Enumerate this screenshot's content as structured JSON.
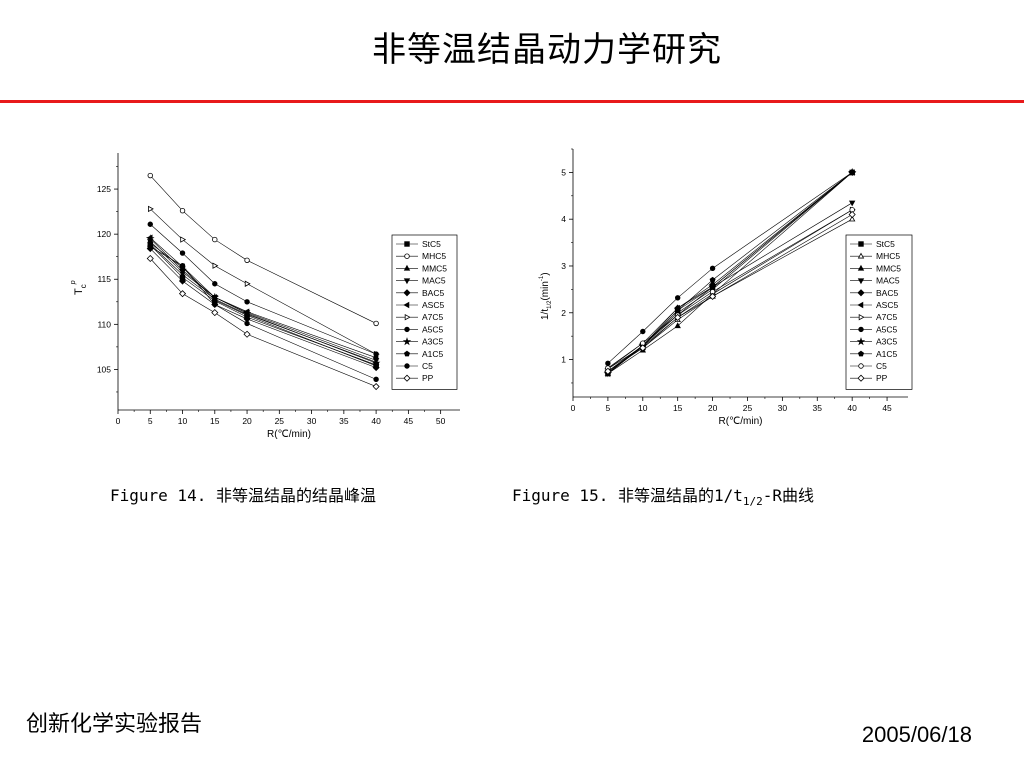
{
  "slide": {
    "title": "非等温结晶动力学研究",
    "rule_color": "#e8191b",
    "footer_left": "创新化学实验报告",
    "footer_right": "2005/06/18"
  },
  "captions": {
    "fig14": "Figure 14. 非等温结晶的结晶峰温",
    "fig15_prefix": "Figure 15. 非等温结晶的1/t",
    "fig15_sub": "1/2",
    "fig15_suffix": "-R曲线"
  },
  "chart_data": [
    {
      "type": "line",
      "ylabel_main": "T",
      "ylabel_sub": "c",
      "ylabel_sup": "p",
      "xlabel": "R(℃/min)",
      "x": [
        5,
        10,
        15,
        20,
        40
      ],
      "xlim": [
        0,
        53
      ],
      "ylim": [
        100.5,
        129
      ],
      "xticks": [
        0,
        5,
        10,
        15,
        20,
        25,
        30,
        35,
        40,
        45,
        50
      ],
      "yticks": [
        105,
        110,
        115,
        120,
        125
      ],
      "legend_position": "right",
      "series": [
        {
          "name": "StC5",
          "marker": "square",
          "values": [
            118.8,
            115.2,
            112.6,
            110.8,
            105.5
          ]
        },
        {
          "name": "MHC5",
          "marker": "circle-open",
          "values": [
            126.5,
            122.6,
            119.4,
            117.1,
            110.1
          ]
        },
        {
          "name": "MMC5",
          "marker": "triangle-up",
          "values": [
            118.9,
            115.5,
            112.8,
            111.1,
            105.8
          ]
        },
        {
          "name": "MAC5",
          "marker": "triangle-down",
          "values": [
            119.2,
            115.8,
            113.0,
            111.3,
            106.0
          ]
        },
        {
          "name": "BAC5",
          "marker": "diamond",
          "values": [
            118.4,
            114.8,
            112.2,
            110.6,
            105.2
          ]
        },
        {
          "name": "ASC5",
          "marker": "triangle-left",
          "values": [
            119.6,
            116.4,
            113.0,
            111.4,
            106.3
          ]
        },
        {
          "name": "A7C5",
          "marker": "triangle-right-open",
          "values": [
            122.8,
            119.4,
            116.5,
            114.5,
            106.7
          ]
        },
        {
          "name": "A5C5",
          "marker": "circle",
          "values": [
            118.6,
            116.5,
            112.2,
            110.1,
            103.9
          ]
        },
        {
          "name": "A3C5",
          "marker": "star",
          "values": [
            119.5,
            116.0,
            113.0,
            111.2,
            105.7
          ]
        },
        {
          "name": "A1C5",
          "marker": "pentagon",
          "values": [
            119.0,
            116.3,
            112.7,
            111.0,
            105.4
          ]
        },
        {
          "name": "C5",
          "marker": "circle",
          "values": [
            121.1,
            117.9,
            114.5,
            112.5,
            106.7
          ]
        },
        {
          "name": "PP",
          "marker": "diamond-open",
          "values": [
            117.3,
            113.4,
            111.3,
            108.9,
            103.1
          ]
        }
      ]
    },
    {
      "type": "line",
      "ylabel_main": "1/t",
      "ylabel_sub": "1/2",
      "ylabel_tail": "(min",
      "ylabel_sup": "-1",
      "ylabel_close": ")",
      "xlabel": "R(℃/min)",
      "x": [
        5,
        10,
        15,
        20,
        40
      ],
      "xlim": [
        0,
        48
      ],
      "ylim": [
        0.2,
        5.5
      ],
      "xticks": [
        0,
        5,
        10,
        15,
        20,
        25,
        30,
        35,
        40,
        45
      ],
      "yticks": [
        1,
        2,
        3,
        4,
        5
      ],
      "legend_position": "right",
      "series": [
        {
          "name": "StC5",
          "marker": "square",
          "values": [
            0.72,
            1.3,
            2.0,
            2.5,
            5.0
          ]
        },
        {
          "name": "MHC5",
          "marker": "triangle-up-open",
          "values": [
            0.75,
            1.25,
            1.85,
            2.35,
            4.0
          ]
        },
        {
          "name": "MMC5",
          "marker": "triangle-up",
          "values": [
            0.7,
            1.2,
            1.72,
            2.4,
            5.0
          ]
        },
        {
          "name": "MAC5",
          "marker": "triangle-down",
          "values": [
            0.7,
            1.28,
            2.05,
            2.55,
            4.35
          ]
        },
        {
          "name": "BAC5",
          "marker": "diamond",
          "values": [
            0.75,
            1.3,
            2.1,
            2.6,
            5.0
          ]
        },
        {
          "name": "ASC5",
          "marker": "triangle-left",
          "values": [
            0.8,
            1.35,
            2.1,
            2.55,
            5.0
          ]
        },
        {
          "name": "A7C5",
          "marker": "triangle-right-open",
          "values": [
            0.8,
            1.28,
            1.9,
            2.4,
            4.2
          ]
        },
        {
          "name": "A5C5",
          "marker": "circle",
          "values": [
            0.92,
            1.6,
            2.32,
            2.95,
            5.0
          ]
        },
        {
          "name": "A3C5",
          "marker": "star",
          "values": [
            0.7,
            1.3,
            1.95,
            2.55,
            5.0
          ]
        },
        {
          "name": "A1C5",
          "marker": "pentagon",
          "values": [
            0.7,
            1.3,
            2.05,
            2.7,
            5.0
          ]
        },
        {
          "name": "C5",
          "marker": "circle-open",
          "values": [
            0.82,
            1.35,
            1.95,
            2.45,
            4.2
          ]
        },
        {
          "name": "PP",
          "marker": "diamond-open",
          "values": [
            0.75,
            1.25,
            1.9,
            2.35,
            4.1
          ]
        }
      ]
    }
  ]
}
